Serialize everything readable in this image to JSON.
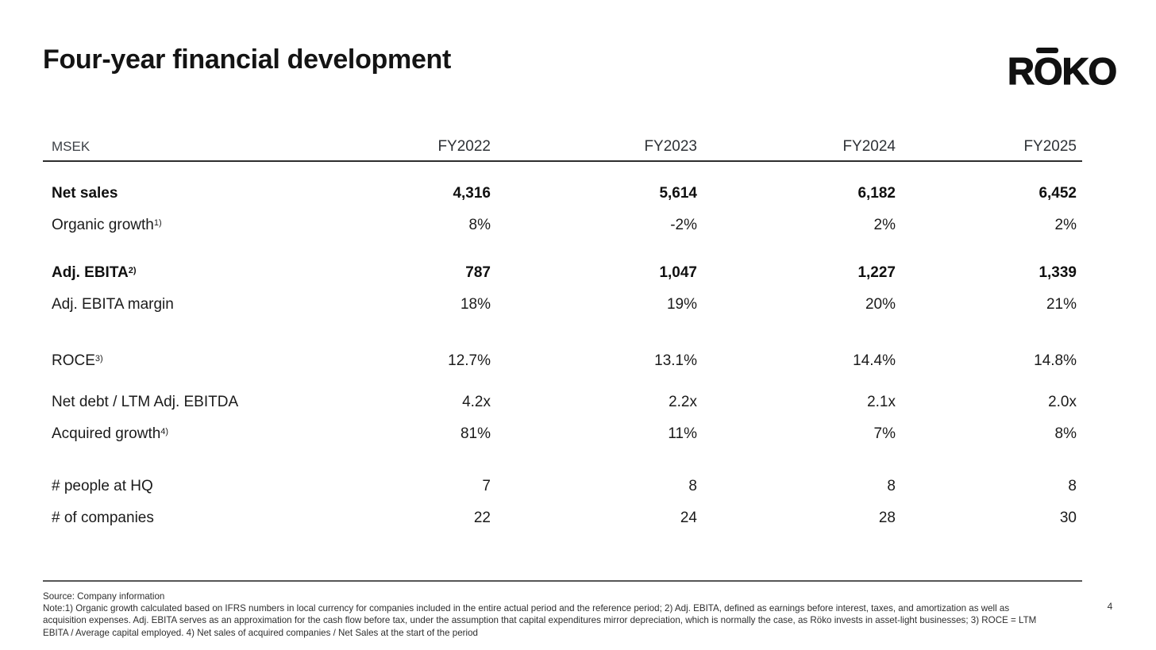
{
  "slide": {
    "title": "Four-year financial development",
    "page_number": "4"
  },
  "logo": {
    "name": "RŌKO",
    "part_r": "R",
    "part_o": "O",
    "part_ko": "KO",
    "color": "#111111"
  },
  "table": {
    "unit_label": "MSEK",
    "columns": [
      "FY2022",
      "FY2023",
      "FY2024",
      "FY2025"
    ],
    "rows": [
      {
        "label": "Net sales",
        "sup": "",
        "bold": true,
        "spacer_before": 20,
        "values": [
          "4,316",
          "5,614",
          "6,182",
          "6,452"
        ]
      },
      {
        "label": "Organic growth",
        "sup": "1)",
        "bold": false,
        "spacer_before": 0,
        "values": [
          "8%",
          "-2%",
          "2%",
          "2%"
        ]
      },
      {
        "label": "Adj. EBITA",
        "sup": "2)",
        "bold": true,
        "spacer_before": 20,
        "values": [
          "787",
          "1,047",
          "1,227",
          "1,339"
        ]
      },
      {
        "label": "Adj. EBITA margin",
        "sup": "",
        "bold": false,
        "spacer_before": 0,
        "values": [
          "18%",
          "19%",
          "20%",
          "21%"
        ]
      },
      {
        "label": "ROCE",
        "sup": "3)",
        "bold": false,
        "spacer_before": 31,
        "values": [
          "12.7%",
          "13.1%",
          "14.4%",
          "14.8%"
        ]
      },
      {
        "label": "Net debt / LTM Adj. EBITDA",
        "sup": "",
        "bold": false,
        "spacer_before": 12,
        "values": [
          "4.2x",
          "2.2x",
          "2.1x",
          "2.0x"
        ]
      },
      {
        "label": "Acquired growth",
        "sup": "4)",
        "bold": false,
        "spacer_before": 0,
        "values": [
          "81%",
          "11%",
          "7%",
          "8%"
        ]
      },
      {
        "label": "# people at HQ",
        "sup": "",
        "bold": false,
        "spacer_before": 26,
        "values": [
          "7",
          "8",
          "8",
          "8"
        ]
      },
      {
        "label": "# of companies",
        "sup": "",
        "bold": false,
        "spacer_before": 0,
        "values": [
          "22",
          "24",
          "28",
          "30"
        ]
      }
    ]
  },
  "footer": {
    "source": "Source: Company information",
    "note": "Note:1) Organic growth calculated based on IFRS numbers in local currency for companies included in the entire actual period and the reference period; 2) Adj. EBITA, defined as earnings before interest, taxes, and amortization as well as acquisition expenses. Adj. EBITA serves as an approximation for the cash flow before tax, under the assumption that capital expenditures mirror depreciation, which is normally the case, as Röko invests in asset-light businesses; 3) ROCE = LTM EBITA / Average capital employed. 4) Net sales of acquired companies / Net Sales at the start of the period"
  }
}
